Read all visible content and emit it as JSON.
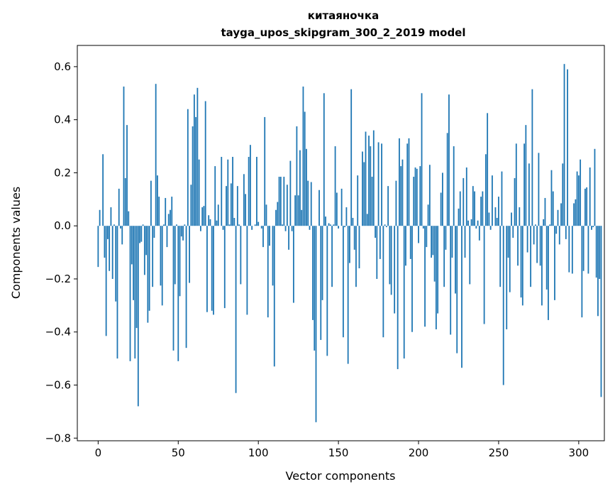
{
  "chart_data": {
    "type": "bar",
    "title": "китаяночка",
    "subtitle": "tayga_upos_skipgram_300_2_2019 model",
    "xlabel": "Vector components",
    "ylabel": "Components values",
    "xlim": [
      -13,
      316
    ],
    "ylim": [
      -0.81,
      0.68
    ],
    "xticks": [
      0,
      50,
      100,
      150,
      200,
      250,
      300
    ],
    "yticks": [
      -0.8,
      -0.6,
      -0.4,
      -0.2,
      0.0,
      0.2,
      0.4,
      0.6
    ],
    "ytick_labels": [
      "−0.8",
      "−0.6",
      "−0.4",
      "−0.2",
      "0.0",
      "0.2",
      "0.4",
      "0.6"
    ],
    "bar_color": "#1f77b4",
    "values": [
      -0.155,
      0.06,
      0.0,
      0.27,
      -0.12,
      -0.415,
      -0.05,
      -0.17,
      0.07,
      -0.2,
      0.005,
      -0.285,
      -0.5,
      0.14,
      -0.01,
      -0.07,
      0.525,
      0.18,
      0.38,
      0.055,
      -0.51,
      -0.145,
      -0.28,
      -0.5,
      -0.385,
      -0.68,
      -0.065,
      -0.06,
      0.005,
      -0.185,
      -0.11,
      -0.365,
      -0.32,
      0.17,
      -0.23,
      -0.045,
      0.535,
      0.19,
      0.11,
      -0.225,
      -0.3,
      0.005,
      0.105,
      -0.08,
      0.045,
      0.06,
      0.11,
      -0.47,
      -0.22,
      0.005,
      -0.51,
      -0.265,
      -0.04,
      -0.055,
      0.005,
      -0.46,
      0.44,
      -0.215,
      0.155,
      0.375,
      0.495,
      0.41,
      0.52,
      0.25,
      -0.02,
      0.07,
      0.075,
      0.47,
      -0.325,
      0.04,
      0.025,
      -0.32,
      -0.335,
      0.225,
      0.02,
      0.08,
      0.0,
      0.26,
      -0.015,
      -0.31,
      0.15,
      0.25,
      0.005,
      0.16,
      0.26,
      0.03,
      -0.63,
      0.15,
      0.005,
      -0.22,
      0.0,
      0.195,
      0.12,
      -0.335,
      0.26,
      0.305,
      -0.015,
      0.0,
      0.005,
      0.26,
      0.015,
      0.0,
      -0.01,
      -0.08,
      0.41,
      0.08,
      -0.345,
      -0.075,
      0.0,
      -0.225,
      -0.53,
      0.06,
      0.09,
      0.185,
      0.185,
      0.005,
      0.185,
      -0.02,
      0.155,
      -0.09,
      0.245,
      -0.02,
      -0.29,
      0.115,
      0.375,
      0.115,
      0.285,
      0.06,
      0.525,
      0.43,
      0.29,
      0.17,
      -0.015,
      0.165,
      -0.355,
      -0.47,
      -0.74,
      0.0,
      0.135,
      -0.43,
      -0.28,
      0.5,
      0.035,
      -0.49,
      0.01,
      0.005,
      -0.23,
      0.005,
      0.3,
      0.125,
      -0.01,
      0.0,
      0.14,
      -0.42,
      -0.005,
      0.07,
      -0.52,
      -0.14,
      0.515,
      0.03,
      -0.09,
      -0.23,
      0.19,
      -0.16,
      0.0,
      0.28,
      0.24,
      0.355,
      0.045,
      0.34,
      0.3,
      0.185,
      0.36,
      -0.045,
      -0.2,
      0.315,
      -0.125,
      0.31,
      -0.42,
      0.005,
      -0.005,
      0.15,
      -0.22,
      -0.26,
      0.0,
      -0.33,
      0.17,
      -0.54,
      0.33,
      0.225,
      0.25,
      -0.5,
      -0.15,
      0.31,
      0.33,
      -0.125,
      -0.4,
      0.185,
      0.22,
      0.215,
      -0.065,
      0.225,
      0.5,
      -0.01,
      -0.38,
      -0.08,
      0.08,
      0.23,
      -0.12,
      -0.11,
      -0.21,
      -0.39,
      -0.33,
      0.0,
      0.125,
      0.2,
      -0.23,
      -0.09,
      0.35,
      0.495,
      -0.41,
      -0.12,
      0.3,
      -0.255,
      -0.48,
      0.065,
      0.13,
      -0.535,
      0.18,
      -0.12,
      0.22,
      0.02,
      -0.22,
      0.025,
      0.15,
      0.13,
      -0.01,
      0.02,
      -0.055,
      0.11,
      0.13,
      -0.37,
      0.27,
      0.425,
      0.05,
      -0.015,
      0.19,
      0.0,
      0.07,
      0.03,
      0.11,
      -0.23,
      0.205,
      -0.6,
      0.0,
      -0.39,
      -0.12,
      -0.25,
      0.05,
      -0.045,
      0.18,
      0.31,
      -0.15,
      0.07,
      -0.27,
      -0.3,
      0.31,
      0.38,
      -0.1,
      0.235,
      -0.23,
      0.515,
      -0.07,
      0.005,
      -0.14,
      0.275,
      -0.15,
      -0.3,
      0.025,
      0.105,
      -0.24,
      -0.355,
      0.005,
      0.21,
      0.13,
      -0.28,
      -0.03,
      0.06,
      -0.07,
      0.085,
      0.235,
      0.61,
      -0.05,
      0.59,
      -0.175,
      0.0,
      -0.18,
      0.085,
      0.1,
      0.205,
      0.19,
      0.25,
      -0.345,
      -0.17,
      0.14,
      0.145,
      -0.18,
      0.22,
      -0.015,
      -0.005,
      0.29,
      -0.195,
      -0.34,
      -0.2,
      -0.645
    ]
  }
}
